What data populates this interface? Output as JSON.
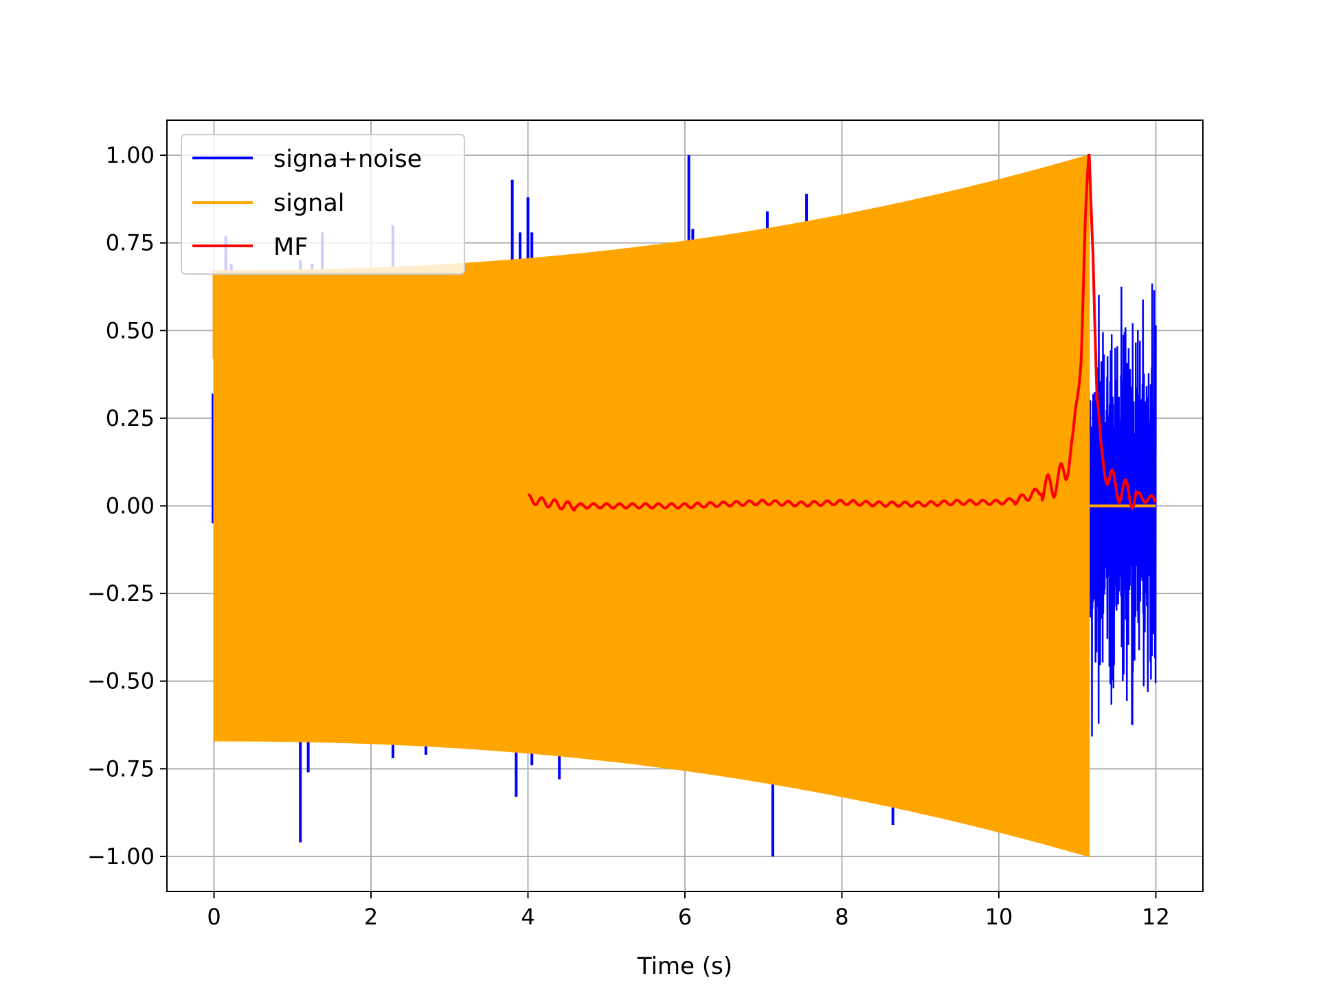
{
  "chart_data": {
    "type": "line",
    "title": "",
    "xlabel": "Time (s)",
    "ylabel": "",
    "xlim": [
      -0.6,
      12.6
    ],
    "ylim": [
      -1.1,
      1.1
    ],
    "grid": true,
    "legend_placement": "upper-left",
    "x_ticks": [
      0,
      2,
      4,
      6,
      8,
      10,
      12
    ],
    "x_tick_labels": [
      "0",
      "2",
      "4",
      "6",
      "8",
      "10",
      "12"
    ],
    "y_ticks": [
      1.0,
      0.75,
      0.5,
      0.25,
      0.0,
      -0.25,
      -0.5,
      -0.75,
      -1.0
    ],
    "y_tick_labels": [
      "1.00",
      "0.75",
      "0.50",
      "0.25",
      "0.00",
      "−0.25",
      "−0.50",
      "−0.75",
      "−1.00"
    ],
    "series": [
      {
        "name": "signa+noise",
        "color": "#0000ff",
        "x_range": [
          0,
          12
        ],
        "envelope_start": [
          0.67,
          -0.67
        ],
        "envelope_end": [
          1.0,
          -1.0
        ],
        "signal_end_x": 11.15,
        "spikes": [
          {
            "x": 0.15,
            "y": 0.77
          },
          {
            "x": 0.22,
            "y": 0.69
          },
          {
            "x": 1.1,
            "y": 0.7
          },
          {
            "x": 1.1,
            "y": -0.96
          },
          {
            "x": 1.2,
            "y": -0.76
          },
          {
            "x": 1.25,
            "y": 0.69
          },
          {
            "x": 1.38,
            "y": 0.78
          },
          {
            "x": 2.28,
            "y": 0.8
          },
          {
            "x": 2.28,
            "y": -0.72
          },
          {
            "x": 2.7,
            "y": -0.71
          },
          {
            "x": 3.8,
            "y": 0.93
          },
          {
            "x": 3.85,
            "y": -0.83
          },
          {
            "x": 3.9,
            "y": 0.78
          },
          {
            "x": 4.0,
            "y": 0.88
          },
          {
            "x": 4.05,
            "y": 0.78
          },
          {
            "x": 4.05,
            "y": -0.74
          },
          {
            "x": 4.4,
            "y": -0.78
          },
          {
            "x": 6.05,
            "y": 1.0
          },
          {
            "x": 6.1,
            "y": 0.79
          },
          {
            "x": 7.05,
            "y": 0.84
          },
          {
            "x": 7.12,
            "y": -1.0
          },
          {
            "x": 7.55,
            "y": 0.89
          },
          {
            "x": 8.65,
            "y": -0.91
          }
        ],
        "tail_noise_range": [
          11.15,
          12.0
        ],
        "tail_noise_amplitude": 0.7
      },
      {
        "name": "signal",
        "color": "#ffa500",
        "x_range": [
          0,
          11.15
        ],
        "envelope_start": [
          0.67,
          -0.67
        ],
        "envelope_end": [
          1.0,
          -1.0
        ],
        "after_end_value": 0.0
      },
      {
        "name": "MF",
        "color": "#ff0000",
        "x": [
          4.0,
          4.2,
          4.5,
          5.0,
          5.5,
          6.0,
          6.5,
          7.0,
          7.5,
          8.0,
          8.5,
          9.0,
          9.5,
          10.0,
          10.3,
          10.5,
          10.7,
          10.85,
          10.95,
          11.05,
          11.1,
          11.15,
          11.2,
          11.25,
          11.3,
          11.4,
          11.5,
          11.7,
          11.9,
          12.0
        ],
        "values": [
          0.02,
          0.01,
          0.0,
          0.0,
          0.0,
          0.0,
          0.005,
          0.01,
          0.005,
          0.01,
          0.005,
          0.005,
          0.01,
          0.01,
          0.02,
          0.04,
          0.06,
          0.1,
          0.18,
          0.45,
          0.78,
          1.0,
          0.75,
          0.3,
          0.15,
          0.08,
          0.05,
          0.03,
          0.02,
          0.015
        ],
        "ripple_amplitude": 0.008
      }
    ]
  }
}
